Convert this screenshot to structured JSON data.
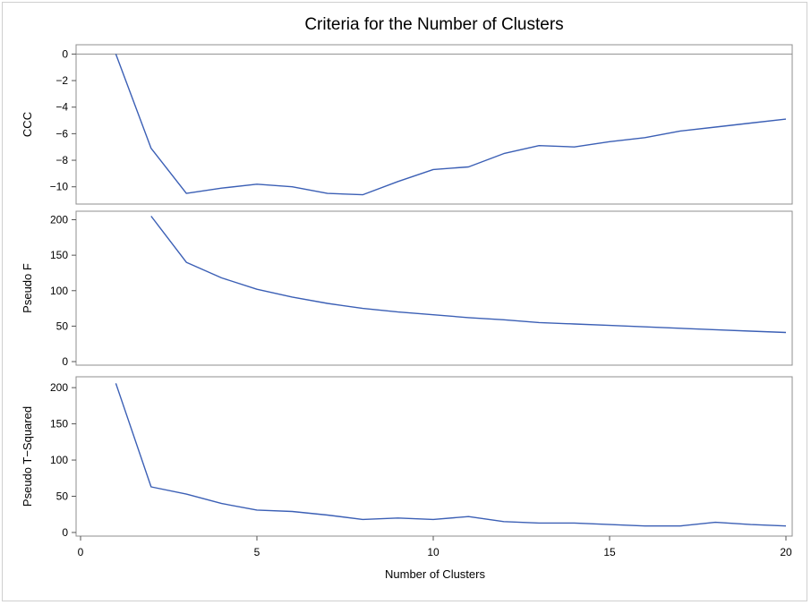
{
  "chart_data": {
    "type": "line",
    "title": "Criteria for the Number of Clusters",
    "xlabel": "Number of Clusters",
    "x_ticks": [
      0,
      5,
      10,
      15,
      20
    ],
    "xlim": [
      0,
      20
    ],
    "grid": false,
    "series_color": "#3b5fb5",
    "panels": [
      {
        "ylabel": "CCC",
        "ylim": [
          -11.3,
          0.7
        ],
        "y_ticks": [
          0,
          -2,
          -4,
          -6,
          -8,
          -10
        ],
        "y_tick_labels": [
          "0",
          "−2",
          "−4",
          "−6",
          "−8",
          "−10"
        ],
        "reference_line": 0,
        "x": [
          1,
          2,
          3,
          4,
          5,
          6,
          7,
          8,
          9,
          10,
          11,
          12,
          13,
          14,
          15,
          16,
          17,
          18,
          19,
          20
        ],
        "values": [
          0,
          -7.1,
          -10.5,
          -10.1,
          -9.8,
          -10.0,
          -10.5,
          -10.6,
          -9.6,
          -8.7,
          -8.5,
          -7.5,
          -6.9,
          -7.0,
          -6.6,
          -6.3,
          -5.8,
          -5.5,
          -5.2,
          -4.9
        ]
      },
      {
        "ylabel": "Pseudo F",
        "ylim": [
          -5,
          212
        ],
        "y_ticks": [
          0,
          50,
          100,
          150,
          200
        ],
        "y_tick_labels": [
          "0",
          "50",
          "100",
          "150",
          "200"
        ],
        "x": [
          2,
          3,
          4,
          5,
          6,
          7,
          8,
          9,
          10,
          11,
          12,
          13,
          14,
          15,
          16,
          17,
          18,
          19,
          20
        ],
        "values": [
          205,
          140,
          118,
          102,
          91,
          82,
          75,
          70,
          66,
          62,
          59,
          55,
          53,
          51,
          49,
          47,
          45,
          43,
          41
        ]
      },
      {
        "ylabel": "Pseudo T−Squared",
        "ylim": [
          -5,
          215
        ],
        "y_ticks": [
          0,
          50,
          100,
          150,
          200
        ],
        "y_tick_labels": [
          "0",
          "50",
          "100",
          "150",
          "200"
        ],
        "x": [
          1,
          2,
          3,
          4,
          5,
          6,
          7,
          8,
          9,
          10,
          11,
          12,
          13,
          14,
          15,
          16,
          17,
          18,
          19,
          20
        ],
        "values": [
          206,
          63,
          53,
          40,
          31,
          29,
          24,
          18,
          20,
          18,
          22,
          15,
          13,
          13,
          11,
          9,
          9,
          14,
          11,
          9
        ]
      }
    ]
  }
}
